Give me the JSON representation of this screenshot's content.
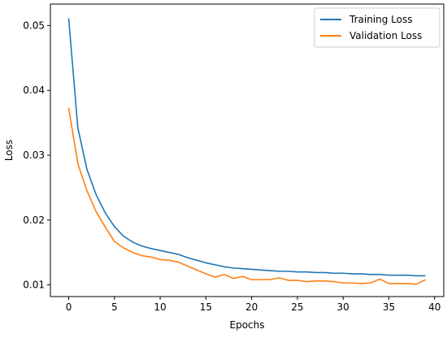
{
  "chart_data": {
    "type": "line",
    "title": "",
    "xlabel": "Epochs",
    "ylabel": "Loss",
    "xlim": [
      -2,
      41
    ],
    "ylim": [
      0.0082,
      0.0533
    ],
    "xticks": [
      0,
      5,
      10,
      15,
      20,
      25,
      30,
      35,
      40
    ],
    "yticks": [
      0.01,
      0.02,
      0.03,
      0.04,
      0.05
    ],
    "ytick_labels": [
      "0.01",
      "0.02",
      "0.03",
      "0.04",
      "0.05"
    ],
    "grid": false,
    "legend_position": "top-right",
    "x": [
      0,
      1,
      2,
      3,
      4,
      5,
      6,
      7,
      8,
      9,
      10,
      11,
      12,
      13,
      14,
      15,
      16,
      17,
      18,
      19,
      20,
      21,
      22,
      23,
      24,
      25,
      26,
      27,
      28,
      29,
      30,
      31,
      32,
      33,
      34,
      35,
      36,
      37,
      38,
      39
    ],
    "series": [
      {
        "name": "Training Loss",
        "color": "#1f77b4",
        "values": [
          0.0511,
          0.0342,
          0.0278,
          0.0239,
          0.0211,
          0.019,
          0.0175,
          0.0166,
          0.016,
          0.0156,
          0.0153,
          0.015,
          0.0147,
          0.0142,
          0.0138,
          0.0134,
          0.0131,
          0.0128,
          0.0126,
          0.0125,
          0.0124,
          0.0123,
          0.0122,
          0.0121,
          0.0121,
          0.012,
          0.012,
          0.0119,
          0.0119,
          0.0118,
          0.0118,
          0.0117,
          0.0117,
          0.0116,
          0.0116,
          0.0115,
          0.0115,
          0.0115,
          0.0114,
          0.0114
        ]
      },
      {
        "name": "Validation Loss",
        "color": "#ff7f0e",
        "values": [
          0.0373,
          0.0287,
          0.0245,
          0.0213,
          0.0189,
          0.0167,
          0.0157,
          0.015,
          0.0145,
          0.0143,
          0.0139,
          0.0138,
          0.0135,
          0.0129,
          0.0123,
          0.0117,
          0.0112,
          0.0116,
          0.011,
          0.0113,
          0.0108,
          0.0108,
          0.0108,
          0.0111,
          0.0107,
          0.0107,
          0.0105,
          0.0106,
          0.0106,
          0.0105,
          0.0103,
          0.0103,
          0.0102,
          0.0103,
          0.0109,
          0.0102,
          0.0102,
          0.0102,
          0.0101,
          0.0108
        ]
      }
    ]
  }
}
